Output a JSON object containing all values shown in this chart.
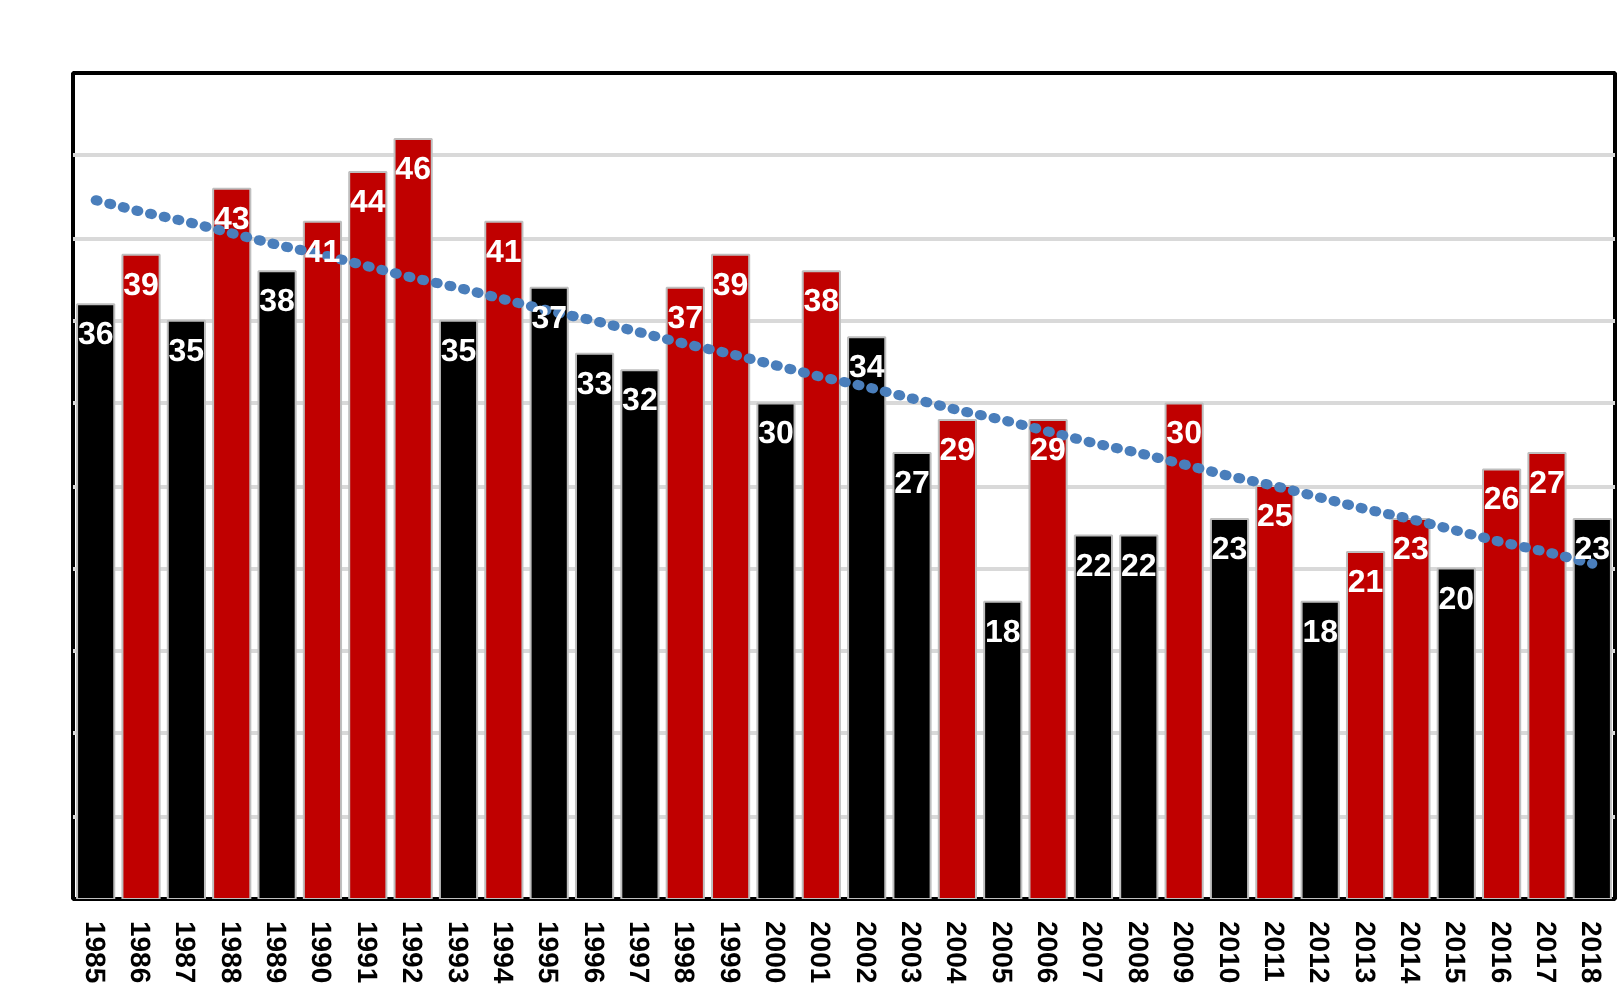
{
  "chart_data": {
    "type": "bar",
    "categories": [
      "1985",
      "1986",
      "1987",
      "1988",
      "1989",
      "1990",
      "1991",
      "1992",
      "1993",
      "1994",
      "1995",
      "1996",
      "1997",
      "1998",
      "1999",
      "2000",
      "2001",
      "2002",
      "2003",
      "2004",
      "2005",
      "2006",
      "2007",
      "2008",
      "2009",
      "2010",
      "2011",
      "2012",
      "2013",
      "2014",
      "2015",
      "2016",
      "2017",
      "2018"
    ],
    "series": [
      {
        "values": [
          36,
          39,
          35,
          43,
          38,
          41,
          44,
          46,
          35,
          41,
          37,
          33,
          32,
          37,
          39,
          30,
          38,
          34,
          27,
          29,
          18,
          29,
          22,
          22,
          30,
          23,
          25,
          18,
          21,
          23,
          20,
          26,
          27,
          23
        ],
        "value_labels": [
          "36",
          "39",
          "35",
          "43",
          "38",
          "41",
          "44",
          "46",
          "35",
          "41",
          "37",
          "33",
          "32",
          "37",
          "39",
          "30",
          "38",
          "34",
          "27",
          "29",
          "18",
          "29",
          "22",
          "22",
          "30",
          "23",
          "25",
          "18",
          "21",
          "23",
          "20",
          "26",
          "27",
          "23"
        ],
        "colors": [
          "#000000",
          "#c00000",
          "#000000",
          "#c00000",
          "#000000",
          "#c00000",
          "#c00000",
          "#c00000",
          "#000000",
          "#c00000",
          "#000000",
          "#000000",
          "#000000",
          "#c00000",
          "#c00000",
          "#000000",
          "#c00000",
          "#000000",
          "#000000",
          "#c00000",
          "#000000",
          "#c00000",
          "#000000",
          "#000000",
          "#c00000",
          "#000000",
          "#c00000",
          "#000000",
          "#c00000",
          "#c00000",
          "#000000",
          "#c00000",
          "#c00000",
          "#000000"
        ]
      },
      {
        "type": "line",
        "values": [
          42.3,
          41.6,
          41.0,
          40.3,
          39.6,
          39.0,
          38.3,
          37.6,
          37.0,
          36.3,
          35.6,
          35.0,
          34.3,
          33.6,
          33.0,
          32.3,
          31.6,
          31.0,
          30.3,
          29.6,
          29.0,
          28.3,
          27.6,
          27.0,
          26.3,
          25.6,
          25.0,
          24.3,
          23.6,
          23.0,
          22.3,
          21.6,
          21.0,
          20.3
        ],
        "color": "#4a7ebb",
        "line_style": "dotted"
      }
    ],
    "ylim": [
      0,
      50
    ],
    "yticks": [
      {
        "value": 0,
        "label": null
      },
      {
        "value": 5,
        "label": null
      },
      {
        "value": 10,
        "label": null
      },
      {
        "value": 15,
        "label": null
      },
      {
        "value": 20,
        "label": null
      },
      {
        "value": 25,
        "label": null
      },
      {
        "value": 30,
        "label": null
      },
      {
        "value": 35,
        "label": null
      },
      {
        "value": 40,
        "label": null
      },
      {
        "value": 45,
        "label": null
      },
      {
        "value": 50,
        "label": null
      }
    ],
    "grid": "y",
    "tick_labels": "x"
  }
}
